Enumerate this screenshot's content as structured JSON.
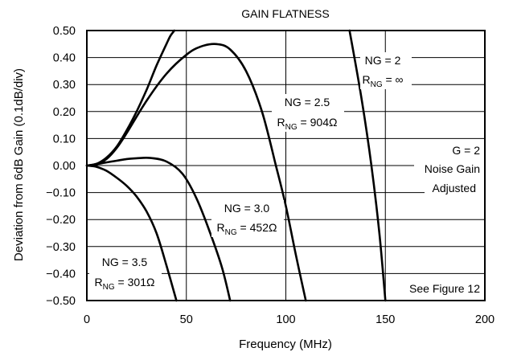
{
  "chart_data": {
    "type": "line",
    "title": "GAIN FLATNESS",
    "xlabel": "Frequency (MHz)",
    "ylabel": "Deviation from 6dB Gain (0.1dB/div)",
    "xlim": [
      0,
      200
    ],
    "ylim": [
      -0.5,
      0.5
    ],
    "grid": true,
    "x_ticks": [
      "0",
      "50",
      "100",
      "150",
      "200"
    ],
    "y_ticks": [
      "0.50",
      "0.40",
      "0.30",
      "0.20",
      "0.10",
      "0.00",
      "−0.10",
      "−0.20",
      "−0.30",
      "−0.40",
      "−0.50"
    ],
    "series": [
      {
        "key": "ng2",
        "points": [
          [
            0,
            0
          ],
          [
            3,
            0.003
          ],
          [
            6,
            0.01
          ],
          [
            10,
            0.03
          ],
          [
            15,
            0.07
          ],
          [
            20,
            0.13
          ],
          [
            25,
            0.2
          ],
          [
            30,
            0.28
          ],
          [
            35,
            0.37
          ],
          [
            40,
            0.45
          ],
          [
            42,
            0.48
          ],
          [
            44,
            0.5
          ]
        ]
      },
      {
        "key": "ng25",
        "points": [
          [
            0,
            0
          ],
          [
            5,
            0.005
          ],
          [
            10,
            0.025
          ],
          [
            15,
            0.065
          ],
          [
            20,
            0.12
          ],
          [
            30,
            0.24
          ],
          [
            40,
            0.34
          ],
          [
            50,
            0.41
          ],
          [
            57,
            0.44
          ],
          [
            65,
            0.45
          ],
          [
            72,
            0.43
          ],
          [
            80,
            0.35
          ],
          [
            88,
            0.2
          ],
          [
            95,
            0.0
          ],
          [
            100,
            -0.15
          ],
          [
            105,
            -0.33
          ],
          [
            110,
            -0.5
          ]
        ]
      },
      {
        "key": "ng30",
        "points": [
          [
            0,
            0
          ],
          [
            5,
            0.005
          ],
          [
            10,
            0.012
          ],
          [
            15,
            0.018
          ],
          [
            20,
            0.024
          ],
          [
            25,
            0.027
          ],
          [
            32,
            0.028
          ],
          [
            40,
            0.015
          ],
          [
            48,
            -0.03
          ],
          [
            55,
            -0.12
          ],
          [
            62,
            -0.25
          ],
          [
            68,
            -0.38
          ],
          [
            72,
            -0.5
          ]
        ]
      },
      {
        "key": "ng35",
        "points": [
          [
            0,
            0
          ],
          [
            5,
            -0.005
          ],
          [
            10,
            -0.02
          ],
          [
            15,
            -0.045
          ],
          [
            20,
            -0.075
          ],
          [
            25,
            -0.115
          ],
          [
            30,
            -0.17
          ],
          [
            35,
            -0.25
          ],
          [
            40,
            -0.37
          ],
          [
            45,
            -0.5
          ]
        ]
      },
      {
        "key": "ng2_inf",
        "points": [
          [
            132,
            0.5
          ],
          [
            138,
            0.25
          ],
          [
            143,
            0.0
          ],
          [
            147,
            -0.25
          ],
          [
            150,
            -0.5
          ]
        ]
      }
    ],
    "annotations": [
      {
        "key": "ng2",
        "line1": "NG = 2",
        "sub_main": "R",
        "sub": "NG",
        "sub_rest": " = ∞"
      },
      {
        "key": "ng25",
        "line1": "NG = 2.5",
        "sub_main": "R",
        "sub": "NG",
        "sub_rest": " = 904Ω"
      },
      {
        "key": "ng30",
        "line1": "NG = 3.0",
        "sub_main": "R",
        "sub": "NG",
        "sub_rest": " = 452Ω"
      },
      {
        "key": "ng35",
        "line1": "NG = 3.5",
        "sub_main": "R",
        "sub": "NG",
        "sub_rest": " = 301Ω"
      }
    ],
    "notes": {
      "g2": "G = 2",
      "noise_gain": "Noise Gain",
      "adjusted": "Adjusted",
      "see_figure": "See Figure 12"
    }
  }
}
